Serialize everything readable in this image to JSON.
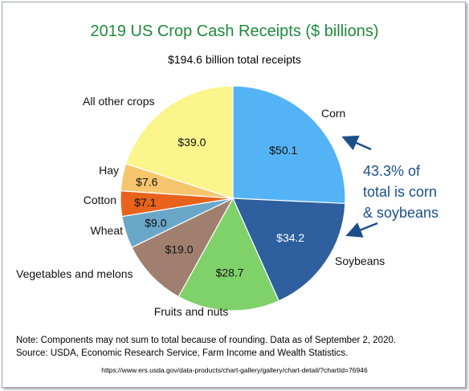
{
  "chart_data": {
    "type": "pie",
    "title": "2019 US Crop Cash Receipts ($ billions)",
    "subtitle": "$194.6 billion total receipts",
    "slices": [
      {
        "name": "Corn",
        "value": 50.1,
        "value_label": "$50.1",
        "color": "#54b3f5"
      },
      {
        "name": "Soybeans",
        "value": 34.2,
        "value_label": "$34.2",
        "color": "#2e5f9e"
      },
      {
        "name": "Fruits and nuts",
        "value": 28.7,
        "value_label": "$28.7",
        "color": "#7fd16a"
      },
      {
        "name": "Vegetables and melons",
        "value": 19.0,
        "value_label": "$19.0",
        "color": "#a07f6e"
      },
      {
        "name": "Wheat",
        "value": 9.0,
        "value_label": "$9.0",
        "color": "#6aa6c8"
      },
      {
        "name": "Cotton",
        "value": 7.1,
        "value_label": "$7.1",
        "color": "#e8621c"
      },
      {
        "name": "Hay",
        "value": 7.6,
        "value_label": "$7.6",
        "color": "#f6c66e"
      },
      {
        "name": "All other crops",
        "value": 39.0,
        "value_label": "$39.0",
        "color": "#fbf58c"
      }
    ],
    "annotation": {
      "lines": [
        "43.3% of",
        "total is corn",
        "& soybeans"
      ],
      "color": "#1b4f8a"
    },
    "note": "Note: Components may not sum to total because of rounding. Data as of September 2, 2020.",
    "source": "Source: USDA, Economic Research Service, Farm Income and Wealth Statistics.",
    "url": "https://www.ers.usda.gov/data-products/chart-gallery/gallery/chart-detail/?chartId=76946"
  }
}
